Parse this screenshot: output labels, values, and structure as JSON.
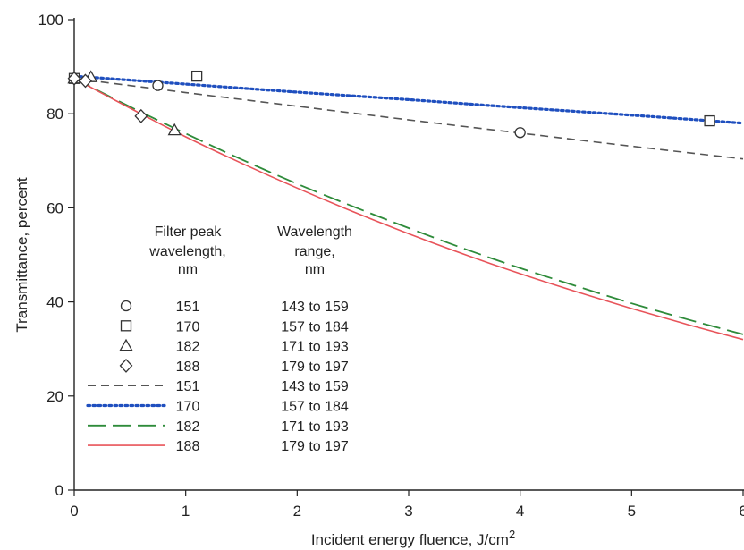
{
  "chart_data": {
    "type": "line",
    "title": "",
    "xlabel": "Incident energy fluence, J/cm",
    "xlabel_superscript": "2",
    "ylabel": "Transmittance, percent",
    "xlim": [
      0,
      6
    ],
    "ylim": [
      0,
      100
    ],
    "x_ticks": [
      0,
      1,
      2,
      3,
      4,
      5,
      6
    ],
    "y_ticks": [
      0,
      20,
      40,
      60,
      80,
      100
    ],
    "grid": false,
    "legend_placement": "lower-left",
    "legend": {
      "header_filter": [
        "Filter peak",
        "wavelength,",
        "nm"
      ],
      "header_range": [
        "Wavelength",
        "range,",
        "nm"
      ],
      "entries": [
        {
          "kind": "marker",
          "marker": "circle",
          "wavelength": "151",
          "range": "143 to 159"
        },
        {
          "kind": "marker",
          "marker": "square",
          "wavelength": "170",
          "range": "157 to 184"
        },
        {
          "kind": "marker",
          "marker": "triangle",
          "wavelength": "182",
          "range": "171 to 193"
        },
        {
          "kind": "marker",
          "marker": "diamond",
          "wavelength": "188",
          "range": "179 to 197"
        },
        {
          "kind": "line",
          "style": "short-dash",
          "color": "#555555",
          "wavelength": "151",
          "range": "143 to 159"
        },
        {
          "kind": "line",
          "style": "dotted",
          "color": "#1f4fbf",
          "wavelength": "170",
          "range": "157 to 184"
        },
        {
          "kind": "line",
          "style": "long-dash",
          "color": "#2e8b3a",
          "wavelength": "182",
          "range": "171 to 193"
        },
        {
          "kind": "line",
          "style": "solid",
          "color": "#e8545a",
          "wavelength": "188",
          "range": "179 to 197"
        }
      ]
    },
    "scatter_series": [
      {
        "wavelength": "151",
        "marker": "circle",
        "x": [
          0.0,
          0.75,
          4.0
        ],
        "y": [
          87.5,
          86.0,
          76.0
        ]
      },
      {
        "wavelength": "170",
        "marker": "square",
        "x": [
          0.0,
          1.1,
          5.7
        ],
        "y": [
          87.5,
          88.0,
          78.5
        ]
      },
      {
        "wavelength": "182",
        "marker": "triangle",
        "x": [
          0.0,
          0.15,
          0.9
        ],
        "y": [
          87.5,
          87.8,
          76.5
        ]
      },
      {
        "wavelength": "188",
        "marker": "diamond",
        "x": [
          0.0,
          0.1,
          0.6
        ],
        "y": [
          87.5,
          87.0,
          79.5
        ]
      }
    ],
    "line_series": [
      {
        "wavelength": "151",
        "style": "short-dash",
        "color": "#555555",
        "x": [
          0,
          1,
          2,
          3,
          4,
          5,
          6
        ],
        "y": [
          87.5,
          84.5,
          81.6,
          78.7,
          75.9,
          73.1,
          70.4
        ]
      },
      {
        "wavelength": "170",
        "style": "dotted",
        "color": "#1f4fbf",
        "x": [
          0,
          1,
          2,
          3,
          4,
          5,
          6
        ],
        "y": [
          88.0,
          86.3,
          84.6,
          83.0,
          81.3,
          79.7,
          78.0
        ]
      },
      {
        "wavelength": "182",
        "style": "long-dash",
        "color": "#2e8b3a",
        "x": [
          0,
          0.5,
          1,
          1.5,
          2,
          2.5,
          3,
          3.5,
          4,
          4.5,
          5,
          5.5,
          6
        ],
        "y": [
          87.5,
          81.5,
          75.8,
          70.3,
          65.1,
          60.3,
          55.7,
          51.3,
          47.2,
          43.4,
          39.7,
          36.3,
          33.1
        ]
      },
      {
        "wavelength": "188",
        "style": "solid",
        "color": "#e8545a",
        "x": [
          0,
          0.5,
          1,
          1.5,
          2,
          2.5,
          3,
          3.5,
          4,
          4.5,
          5,
          5.5,
          6
        ],
        "y": [
          87.5,
          81.2,
          75.1,
          69.5,
          64.2,
          59.2,
          54.5,
          50.1,
          46.0,
          42.2,
          38.6,
          35.2,
          32.0
        ]
      }
    ]
  }
}
